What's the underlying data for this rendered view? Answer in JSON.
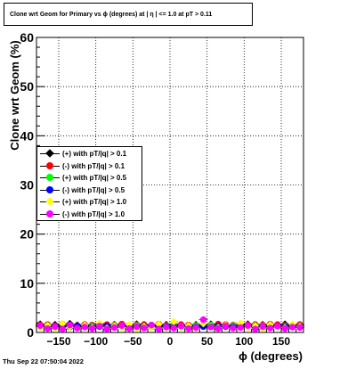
{
  "header": {
    "title": "Clone wrt Geom for Primary vs ϕ (degrees) at |  η | <= 1.0 at pT > 0.11"
  },
  "footer": {
    "timestamp": "Thu Sep 22 07:50:04 2022"
  },
  "chart_data": {
    "type": "scatter",
    "title": "Clone wrt Geom for Primary vs ϕ (degrees) at |  η | <= 1.0 at pT > 0.11",
    "xlabel": "ϕ (degrees)",
    "ylabel": "Clone wrt Geom (%)",
    "xlim": [
      -180,
      180
    ],
    "ylim": [
      0,
      60
    ],
    "xticks": [
      -150,
      -100,
      -50,
      0,
      50,
      100,
      150
    ],
    "xtick_labels": [
      "−150",
      "−100",
      "−50",
      "0",
      "50",
      "100",
      "150"
    ],
    "yticks": [
      0,
      10,
      20,
      30,
      40,
      50,
      60
    ],
    "ytick_labels": [
      "0",
      "10",
      "20",
      "30",
      "40",
      "50",
      "60"
    ],
    "grid": true,
    "legend_position": "left-middle",
    "x": [
      -175,
      -165,
      -155,
      -145,
      -135,
      -125,
      -115,
      -105,
      -95,
      -85,
      -75,
      -65,
      -55,
      -45,
      -35,
      -25,
      -15,
      -5,
      5,
      15,
      25,
      35,
      45,
      55,
      65,
      75,
      85,
      95,
      105,
      115,
      125,
      135,
      145,
      155,
      165,
      175
    ],
    "series": [
      {
        "name": "(+) with pT/|q| > 0.1",
        "color": "#000000",
        "marker": "diamond",
        "values": [
          1.7,
          1.5,
          1.6,
          1.4,
          1.8,
          1.5,
          1.6,
          1.3,
          1.7,
          1.5,
          1.6,
          1.4,
          1.5,
          1.7,
          1.6,
          1.4,
          1.5,
          1.6,
          1.7,
          1.5,
          1.4,
          1.6,
          1.5,
          1.7,
          1.6,
          1.5,
          1.4,
          1.6,
          1.7,
          1.5,
          1.6,
          1.4,
          1.5,
          1.7,
          1.6,
          1.5
        ]
      },
      {
        "name": "(-) with pT/|q| > 0.1",
        "color": "#ff0000",
        "marker": "circle",
        "values": [
          1.5,
          1.6,
          1.4,
          1.7,
          1.5,
          1.4,
          1.6,
          1.5,
          1.3,
          1.6,
          1.5,
          1.7,
          1.4,
          1.5,
          1.6,
          1.5,
          1.7,
          1.4,
          1.5,
          1.6,
          1.5,
          1.4,
          1.6,
          1.5,
          1.7,
          1.6,
          1.5,
          1.4,
          1.5,
          1.6,
          1.5,
          1.7,
          1.6,
          1.4,
          1.5,
          1.6
        ]
      },
      {
        "name": "(+) with pT/|q| > 0.5",
        "color": "#00ff00",
        "marker": "circle",
        "values": [
          1.3,
          1.4,
          1.2,
          1.5,
          1.3,
          1.2,
          1.4,
          1.3,
          1.5,
          1.2,
          1.4,
          1.3,
          1.2,
          1.4,
          1.3,
          1.5,
          1.2,
          1.3,
          1.4,
          1.3,
          1.2,
          1.4,
          1.3,
          1.5,
          1.3,
          1.2,
          1.4,
          1.3,
          1.2,
          1.4,
          1.3,
          1.5,
          1.2,
          1.3,
          1.4,
          1.3
        ]
      },
      {
        "name": "(-) with pT/|q| > 0.5",
        "color": "#0000ff",
        "marker": "circle",
        "values": [
          1.2,
          1.1,
          1.3,
          1.2,
          1.1,
          1.3,
          1.2,
          1.1,
          1.2,
          1.3,
          1.1,
          1.2,
          1.3,
          1.1,
          1.2,
          1.1,
          1.3,
          1.2,
          1.1,
          1.2,
          1.3,
          1.1,
          1.2,
          1.1,
          1.3,
          1.2,
          1.1,
          1.2,
          1.3,
          1.1,
          1.2,
          1.1,
          1.3,
          1.2,
          1.1,
          1.2
        ]
      },
      {
        "name": "(+) with pT/|q| > 1.0",
        "color": "#ffff00",
        "marker": "diamond",
        "values": [
          1.0,
          1.4,
          0.9,
          1.8,
          1.1,
          0.8,
          1.5,
          1.0,
          1.9,
          0.9,
          1.3,
          1.0,
          1.6,
          0.8,
          1.2,
          1.0,
          1.7,
          0.9,
          2.2,
          1.0,
          1.4,
          0.8,
          1.8,
          1.1,
          1.0,
          1.5,
          0.9,
          1.9,
          1.0,
          1.3,
          0.8,
          1.6,
          1.1,
          1.0,
          1.7,
          1.2
        ]
      },
      {
        "name": "(-) with pT/|q| > 1.0",
        "color": "#ff00ff",
        "marker": "circle",
        "values": [
          1.4,
          0.8,
          1.2,
          0.7,
          1.5,
          0.9,
          1.1,
          0.8,
          1.3,
          0.7,
          1.0,
          1.4,
          0.8,
          1.2,
          0.9,
          1.5,
          0.7,
          1.1,
          0.9,
          1.3,
          0.8,
          1.0,
          2.6,
          1.1,
          0.8,
          1.3,
          0.9,
          1.0,
          1.4,
          0.7,
          1.2,
          0.9,
          1.3,
          0.8,
          1.1,
          1.0
        ]
      }
    ]
  }
}
